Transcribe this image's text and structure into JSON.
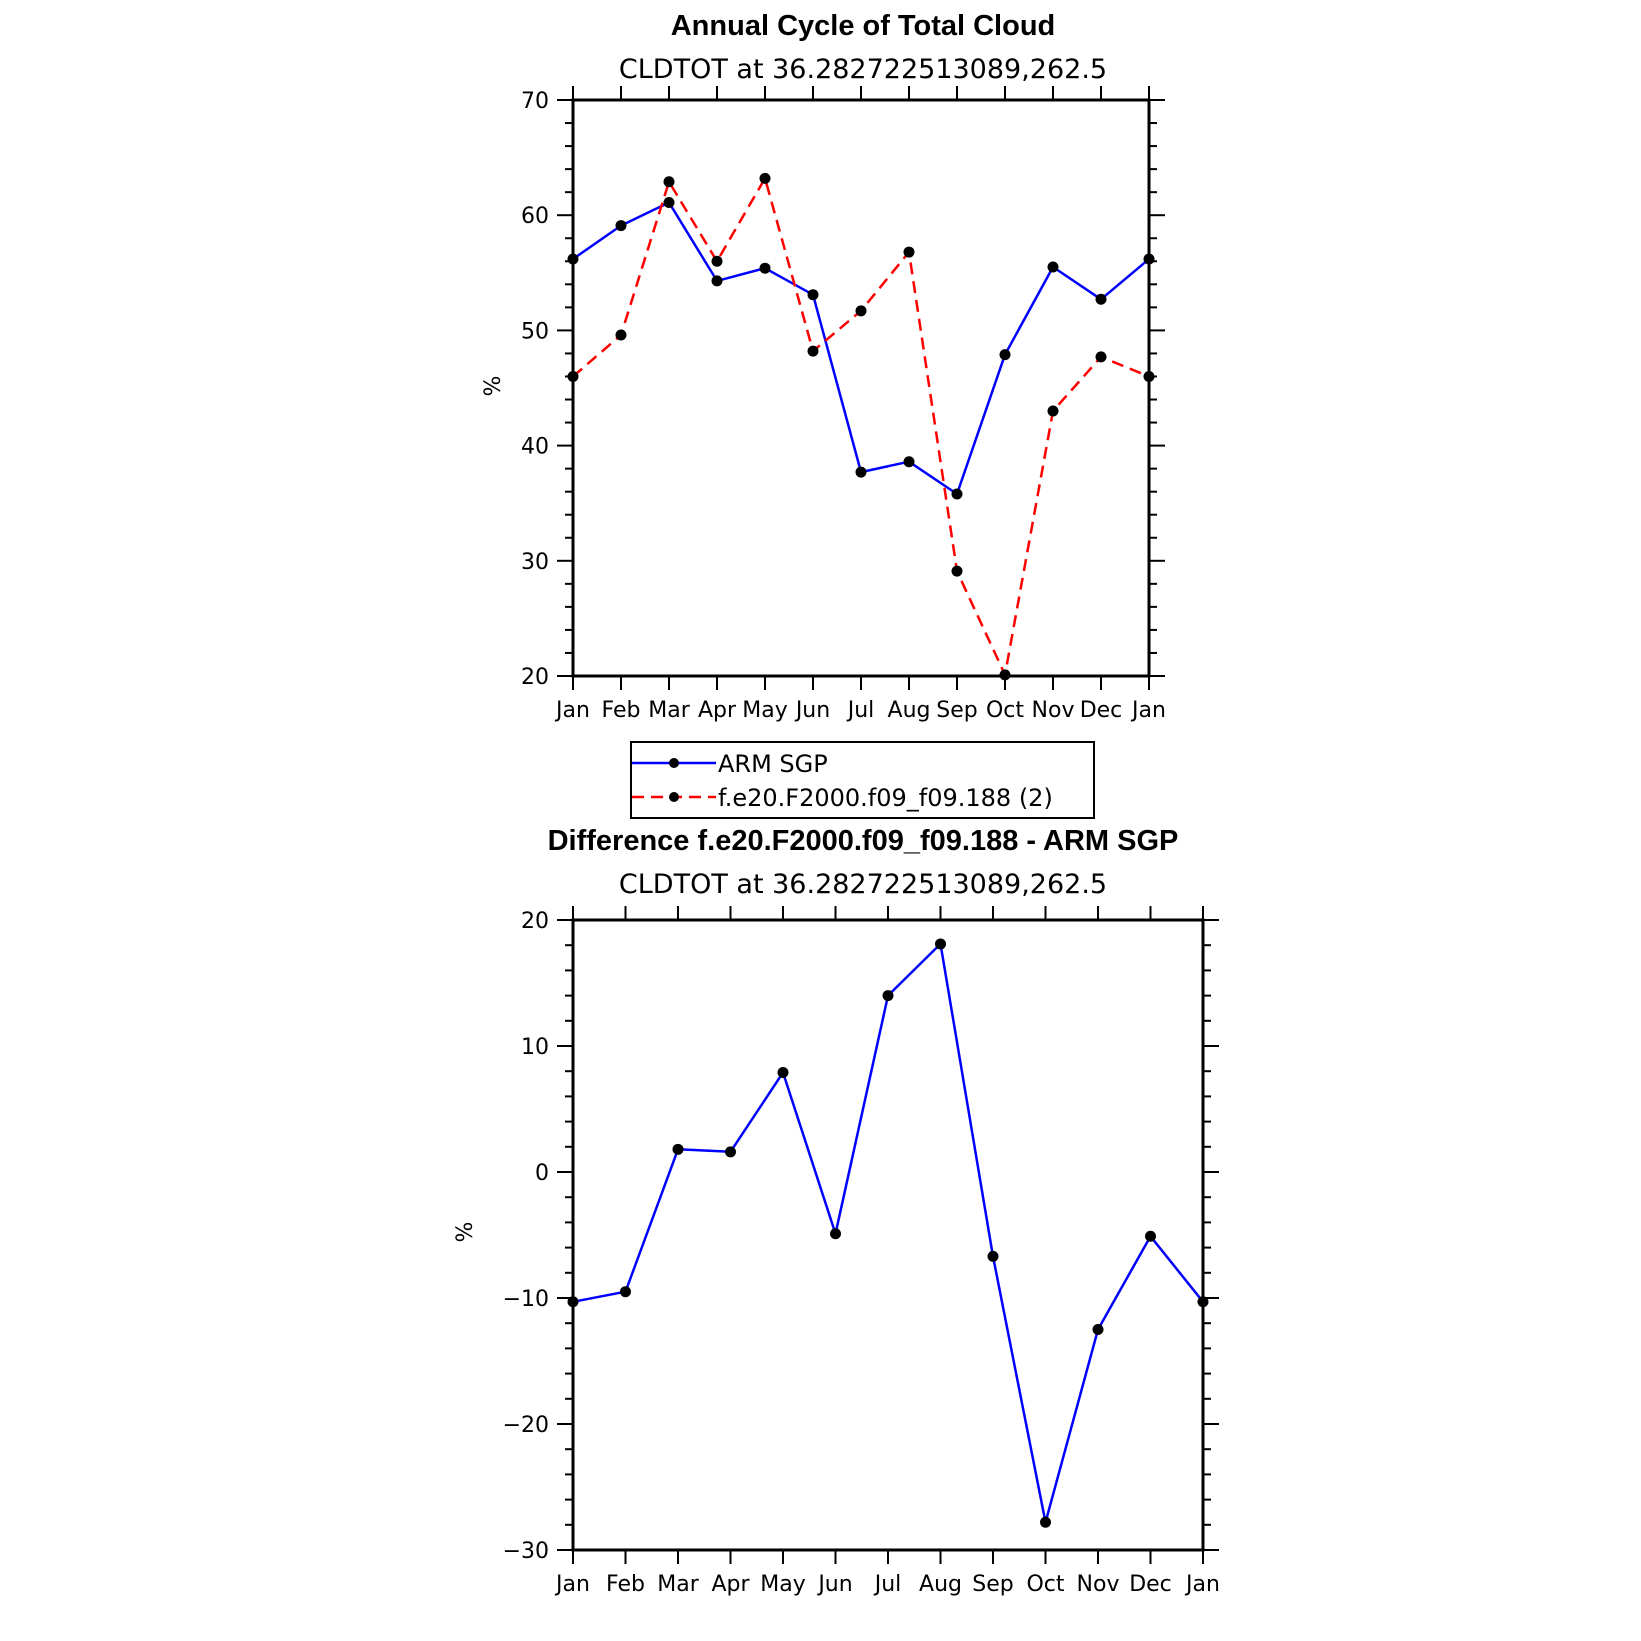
{
  "chart_data": [
    {
      "type": "line",
      "title": "Annual Cycle of Total Cloud",
      "subtitle": "CLDTOT at 36.282722513089,262.5",
      "ylabel": "%",
      "ylim": [
        20,
        70
      ],
      "yticks": [
        "20",
        "30",
        "40",
        "50",
        "60",
        "70"
      ],
      "categories": [
        "Jan",
        "Feb",
        "Mar",
        "Apr",
        "May",
        "Jun",
        "Jul",
        "Aug",
        "Sep",
        "Oct",
        "Nov",
        "Dec",
        "Jan"
      ],
      "series": [
        {
          "name": "ARM SGP",
          "color": "#0000ff",
          "dash": "solid",
          "values": [
            56.2,
            59.1,
            61.1,
            54.3,
            55.4,
            53.1,
            37.7,
            38.6,
            35.8,
            47.9,
            55.5,
            52.7,
            56.2
          ]
        },
        {
          "name": "f.e20.F2000.f09_f09.188 (2)",
          "color": "#ff0000",
          "dash": "dashed",
          "values": [
            46.0,
            49.6,
            62.9,
            56.0,
            63.2,
            48.2,
            51.7,
            56.8,
            29.1,
            20.1,
            43.0,
            47.7,
            46.0
          ]
        }
      ],
      "legend": "bottom"
    },
    {
      "type": "line",
      "title": "Difference f.e20.F2000.f09_f09.188 - ARM SGP",
      "subtitle": "CLDTOT at 36.282722513089,262.5",
      "ylabel": "%",
      "ylim": [
        -30,
        20
      ],
      "yticks": [
        "−30",
        "−20",
        "−10",
        "0",
        "10",
        "20"
      ],
      "categories": [
        "Jan",
        "Feb",
        "Mar",
        "Apr",
        "May",
        "Jun",
        "Jul",
        "Aug",
        "Sep",
        "Oct",
        "Nov",
        "Dec",
        "Jan"
      ],
      "series": [
        {
          "color": "#0000ff",
          "dash": "solid",
          "values": [
            -10.3,
            -9.5,
            1.8,
            1.6,
            7.9,
            -4.9,
            14.0,
            18.1,
            -6.7,
            -27.8,
            -12.5,
            -5.1,
            -10.3
          ]
        }
      ]
    }
  ]
}
